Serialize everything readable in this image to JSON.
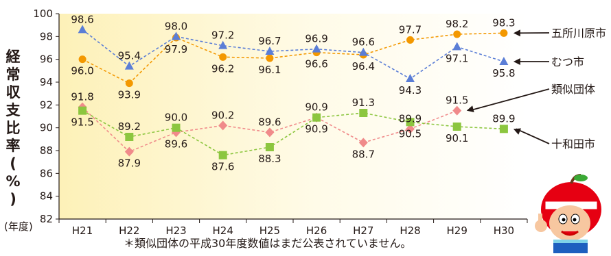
{
  "chart_data": {
    "type": "line",
    "ylabel": "経常収支比率(%)",
    "xunit": "(年度)",
    "footnote": "＊類似団体の平成30年度数値はまだ公表されていません。",
    "categories": [
      "H21",
      "H22",
      "H23",
      "H24",
      "H25",
      "H26",
      "H27",
      "H28",
      "H29",
      "H30"
    ],
    "yticks": [
      82,
      84,
      86,
      88,
      90,
      92,
      94,
      96,
      98,
      100
    ],
    "ylim": [
      82,
      100
    ],
    "grid": false,
    "series": [
      {
        "name": "五所川原市",
        "color": "#f39800",
        "marker": "circle",
        "values": [
          96.0,
          93.9,
          97.9,
          96.2,
          96.1,
          96.6,
          96.4,
          97.7,
          98.2,
          98.3
        ]
      },
      {
        "name": "むつ市",
        "color": "#5b7ed6",
        "marker": "triangle",
        "values": [
          98.6,
          95.4,
          98.0,
          97.2,
          96.7,
          96.9,
          96.6,
          94.3,
          97.1,
          95.8
        ]
      },
      {
        "name": "類似団体",
        "color": "#f08a8a",
        "marker": "diamond",
        "values": [
          91.8,
          87.9,
          89.6,
          90.2,
          89.6,
          90.9,
          88.7,
          89.9,
          91.5,
          null
        ]
      },
      {
        "name": "十和田市",
        "color": "#8cc63f",
        "marker": "square",
        "values": [
          91.5,
          89.2,
          90.0,
          87.6,
          88.3,
          90.9,
          91.3,
          90.5,
          90.1,
          89.9
        ]
      }
    ]
  }
}
